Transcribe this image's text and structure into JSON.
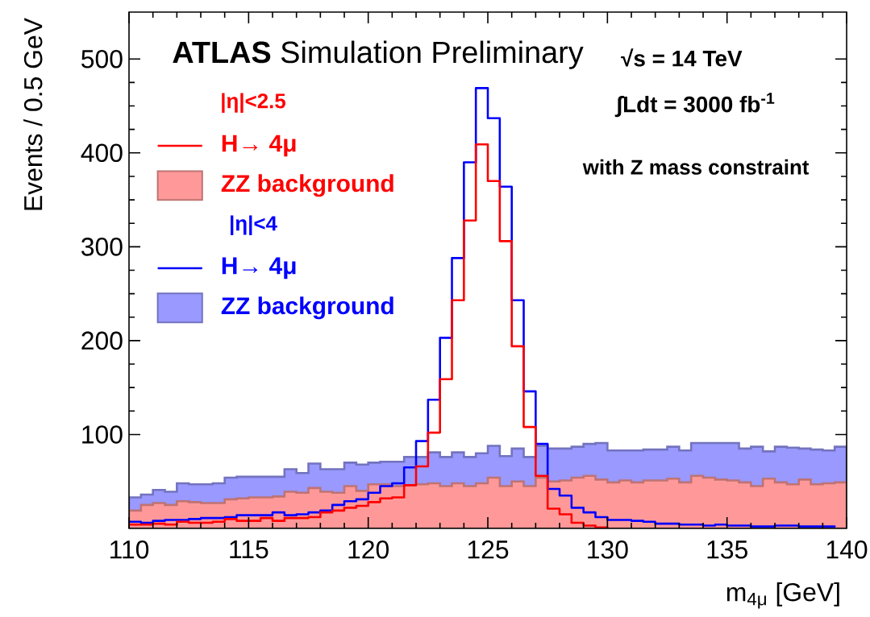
{
  "chart_data": {
    "type": "histogram",
    "title": "**ATLAS** Simulation Preliminary",
    "xlabel": "m$_{4μ}$ [GeV]",
    "ylabel": "Events / 0.5 GeV",
    "annotations": [
      "√s = 14 TeV",
      "∫Ldt = 3000 fb$^{-1}$",
      "with Z mass constraint",
      "|η|<2.5",
      "|η|<4"
    ],
    "bins": [
      110,
      110.5,
      111,
      111.5,
      112,
      112.5,
      113,
      113.5,
      114,
      114.5,
      115,
      115.5,
      116,
      116.5,
      117,
      117.5,
      118,
      118.5,
      119,
      119.5,
      120,
      120.5,
      121,
      121.5,
      122,
      122.5,
      123,
      123.5,
      124,
      124.5,
      125,
      125.5,
      126,
      126.5,
      127,
      127.5,
      128,
      128.5,
      129,
      129.5,
      130,
      130.5,
      131,
      131.5,
      132,
      132.5,
      133,
      133.5,
      134,
      134.5,
      135,
      135.5,
      136,
      136.5,
      137,
      137.5,
      138,
      138.5,
      139,
      139.5,
      140
    ],
    "series": [
      {
        "name": "H→ 4μ",
        "type": "step",
        "color": "#ff0000",
        "x": [
          110,
          110.5,
          111,
          111.5,
          112,
          112.5,
          113,
          113.5,
          114,
          114.5,
          115,
          115.5,
          116,
          116.5,
          117,
          117.5,
          118,
          118.5,
          119,
          119.5,
          120,
          120.5,
          121,
          121.5,
          122,
          122.5,
          123,
          123.5,
          124,
          124.5,
          125,
          125.5,
          126,
          126.5,
          127,
          127.5,
          128,
          128.5,
          129,
          129.5,
          130
        ],
        "values": [
          4,
          4,
          5,
          4,
          7,
          6,
          6,
          7,
          10,
          8,
          8,
          11,
          8,
          11,
          11,
          12,
          17,
          19,
          22,
          24,
          28,
          32,
          33,
          46,
          66,
          102,
          159,
          243,
          328,
          409,
          370,
          306,
          194,
          108,
          56,
          21,
          15,
          6,
          3,
          1,
          0
        ]
      },
      {
        "name": "ZZ background",
        "type": "histogram",
        "color": "#ff9999",
        "values": [
          19,
          25,
          27,
          25,
          29,
          28,
          27,
          27,
          31,
          32,
          33,
          33,
          34,
          39,
          38,
          43,
          39,
          38,
          45,
          40,
          47,
          47,
          45,
          46,
          47,
          48,
          45,
          48,
          45,
          48,
          54,
          45,
          50,
          45,
          54,
          50,
          51,
          54,
          56,
          52,
          49,
          51,
          49,
          51,
          51,
          53,
          49,
          56,
          54,
          52,
          51,
          49,
          45,
          53,
          49,
          47,
          52,
          47,
          48,
          49
        ]
      },
      {
        "name": "H→ 4μ",
        "type": "step",
        "color": "#0000ff",
        "x": [
          110,
          110.5,
          111,
          111.5,
          112,
          112.5,
          113,
          113.5,
          114,
          114.5,
          115,
          115.5,
          116,
          116.5,
          117,
          117.5,
          118,
          118.5,
          119,
          119.5,
          120,
          120.5,
          121,
          121.5,
          122,
          122.5,
          123,
          123.5,
          124,
          124.5,
          125,
          125.5,
          126,
          126.5,
          127,
          127.5,
          128,
          128.5,
          129,
          129.5,
          130,
          130.5,
          131,
          131.5,
          132,
          132.5,
          133,
          133.5,
          134,
          134.5,
          135,
          135.5,
          136,
          136.5,
          137,
          137.5,
          138,
          138.5,
          139,
          139.5
        ],
        "values": [
          7,
          6,
          8,
          9,
          9,
          10,
          11,
          11,
          12,
          14,
          14,
          14,
          17,
          14,
          15,
          17,
          19,
          25,
          29,
          31,
          38,
          45,
          48,
          65,
          93,
          137,
          203,
          288,
          390,
          469,
          437,
          364,
          243,
          146,
          90,
          42,
          35,
          22,
          17,
          12,
          9,
          9,
          8,
          7,
          5,
          5,
          4,
          4,
          3,
          4,
          3,
          3,
          2,
          2,
          3,
          3,
          2,
          2,
          2,
          3
        ]
      },
      {
        "name": "ZZ background",
        "type": "histogram",
        "color": "#9999ff",
        "values": [
          33,
          36,
          41,
          39,
          48,
          47,
          47,
          48,
          54,
          55,
          55,
          55,
          55,
          63,
          59,
          69,
          63,
          63,
          70,
          68,
          70,
          71,
          71,
          76,
          76,
          81,
          76,
          81,
          76,
          80,
          88,
          77,
          85,
          76,
          88,
          85,
          85,
          87,
          90,
          91,
          83,
          83,
          83,
          84,
          84,
          87,
          83,
          91,
          91,
          91,
          91,
          85,
          87,
          82,
          87,
          86,
          85,
          84,
          83,
          87
        ]
      }
    ],
    "xlim": [
      110,
      140
    ],
    "ylim": [
      0,
      550
    ],
    "xticks": [
      110,
      115,
      120,
      125,
      130,
      135,
      140
    ],
    "yticks": [
      100,
      200,
      300,
      400,
      500
    ],
    "legend": "top left",
    "grid": false
  }
}
